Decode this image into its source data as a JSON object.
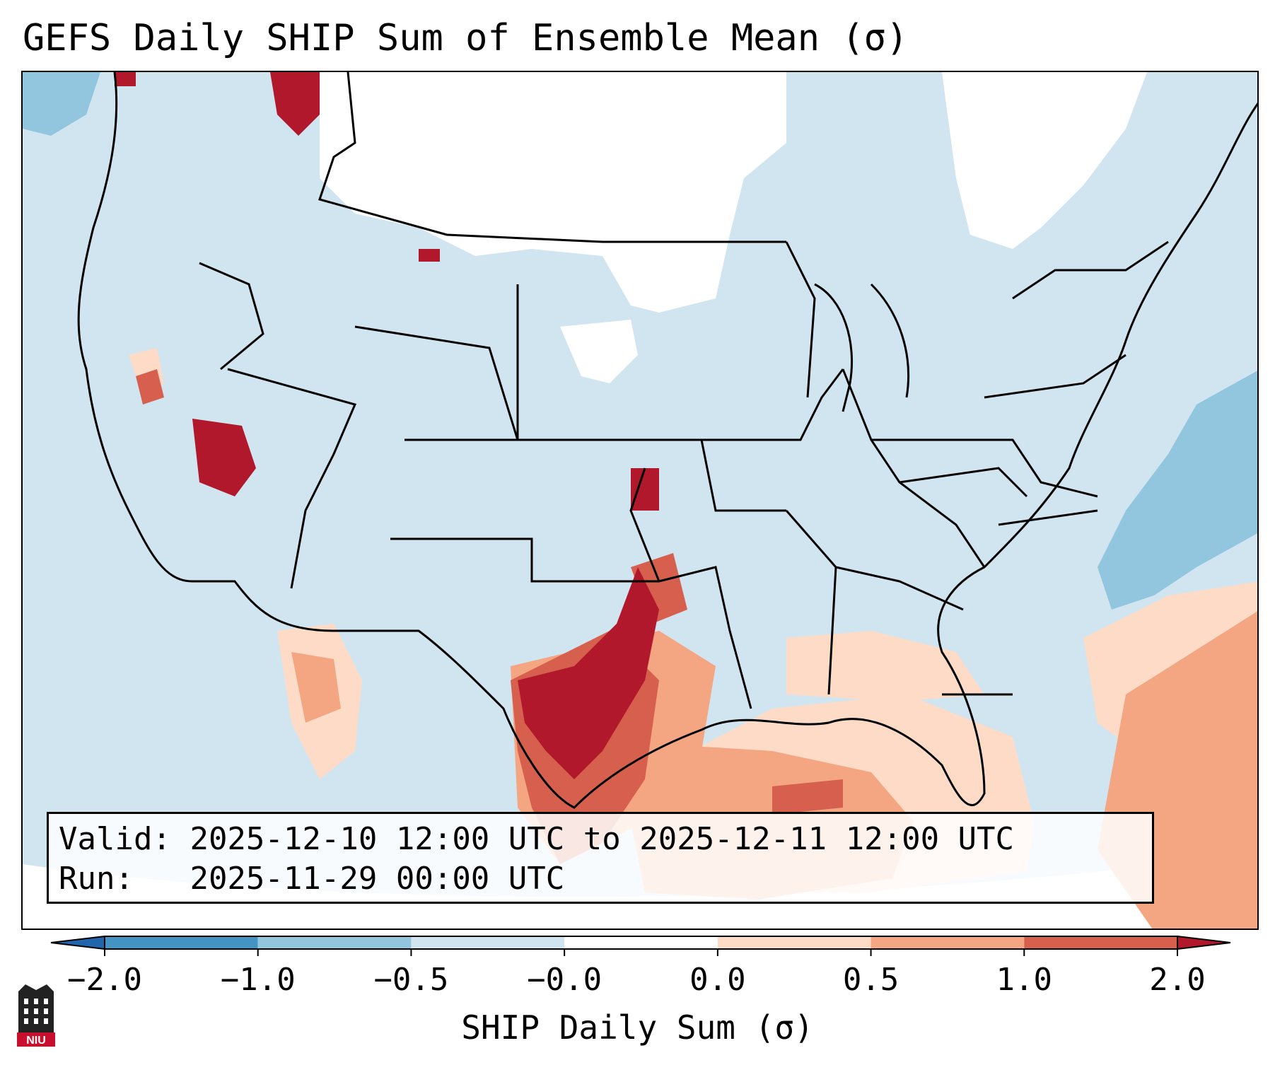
{
  "title": "GEFS Daily SHIP Sum of Ensemble Mean (σ)",
  "info": {
    "valid_label": "Valid:",
    "valid_value": "2025-12-10 12:00 UTC to 2025-12-11 12:00 UTC",
    "run_label": "Run:",
    "run_value": "2025-11-29 00:00 UTC"
  },
  "colorbar": {
    "label": "SHIP Daily Sum (σ)",
    "ticks": [
      "−2.0",
      "−1.0",
      "−0.5",
      "−0.0",
      "0.0",
      "0.5",
      "1.0",
      "2.0"
    ],
    "colors": [
      "#4393c3",
      "#92c5de",
      "#d1e5f0",
      "#ffffff",
      "#fddbc7",
      "#f4a582",
      "#d6604d"
    ],
    "extend_low_color": "#2166ac",
    "extend_high_color": "#b2182b"
  },
  "palette": {
    "near_zero": "#ffffff",
    "slightly_negative": "#d1e5f0",
    "negative": "#92c5de",
    "slightly_positive": "#fddbc7",
    "positive": "#f4a582",
    "strong_positive": "#d6604d",
    "very_strong_positive": "#b2182b"
  },
  "logo": {
    "text": "NIU",
    "icon": "niu-logo-icon"
  }
}
